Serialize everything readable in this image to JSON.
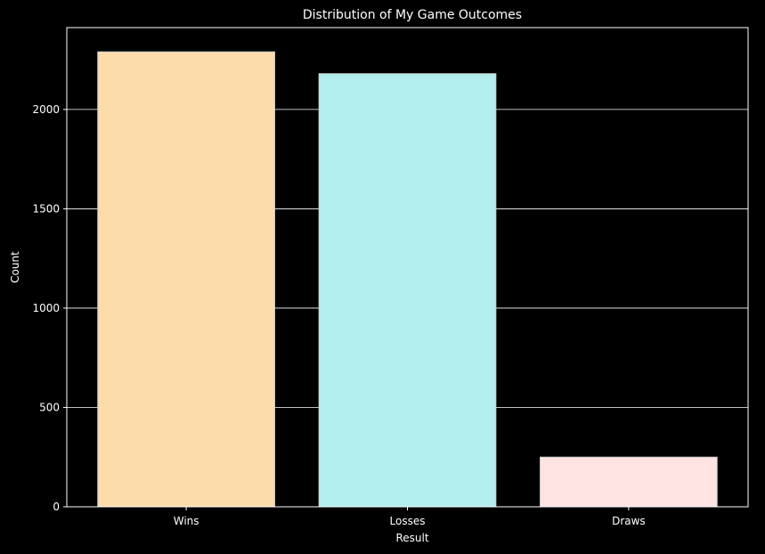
{
  "chart_data": {
    "type": "bar",
    "title": "Distribution of My Game Outcomes",
    "xlabel": "Result",
    "ylabel": "Count",
    "categories": [
      "Wins",
      "Losses",
      "Draws"
    ],
    "values": [
      2290,
      2180,
      250
    ],
    "ylim": [
      0,
      2412
    ],
    "yticks": [
      0,
      500,
      1000,
      1500,
      2000
    ],
    "grid": "y",
    "legend": "none",
    "colors": {
      "background": "#000000",
      "text": "#ffffff",
      "grid": "#ffffff",
      "bars": [
        "#fddcab",
        "#b2eeee",
        "#fee3e2"
      ],
      "bar_edge": "#cccccc"
    }
  }
}
